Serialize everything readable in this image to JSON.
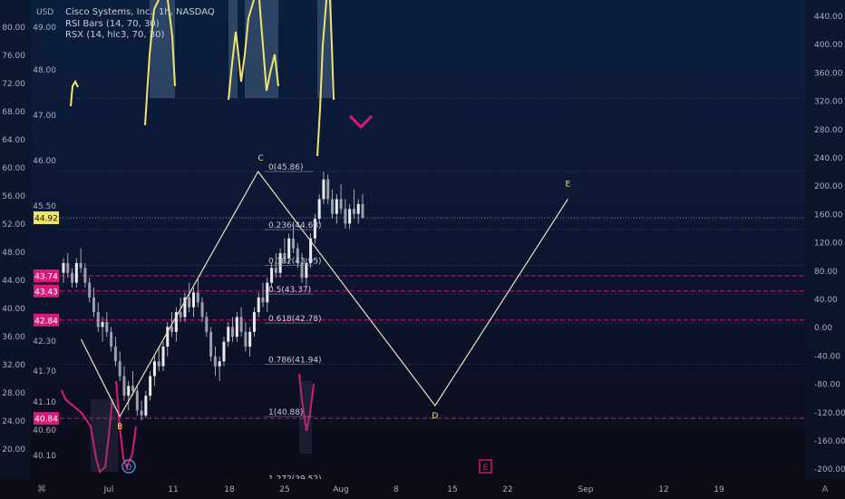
{
  "legend": {
    "symbol": "Cisco Systems, Inc., 1h, NASDAQ",
    "rsi_bars": "RSI Bars (14, 70, 30)",
    "rsx": "RSX (14, hlc3, 70, 30)"
  },
  "currency": "USD",
  "corner_right": "A",
  "corner_left": "⌘",
  "colors": {
    "background_top": "#0b1e3d",
    "background_bottom": "#0b0a14",
    "yellow": "#f2e56b",
    "magenta": "#d81b7a",
    "candles": "#c8cbd2",
    "grid_dotted": "#8a8f9c"
  },
  "chart_data": {
    "type": "candlestick",
    "title": "Cisco Systems, Inc., 1h, NASDAQ",
    "price_axis": {
      "label": "USD",
      "ticks": [
        "49.00",
        "48.00",
        "47.00",
        "46.00",
        "45.50",
        "42.30",
        "41.70",
        "41.10",
        "40.60",
        "40.10"
      ],
      "range": [
        40.0,
        49.2
      ]
    },
    "indicator_left_axis": {
      "ticks": [
        "80.00",
        "76.00",
        "72.00",
        "68.00",
        "64.00",
        "60.00",
        "56.00",
        "52.00",
        "48.00",
        "44.00",
        "40.00",
        "36.00",
        "32.00",
        "28.00",
        "24.00",
        "20.00"
      ]
    },
    "indicator_right_axis": {
      "ticks": [
        "440.00",
        "400.00",
        "360.00",
        "320.00",
        "280.00",
        "240.00",
        "200.00",
        "160.00",
        "120.00",
        "80.00",
        "40.00",
        "0.00",
        "-40.00",
        "-80.00",
        "-120.00",
        "-160.00",
        "-200.00"
      ]
    },
    "x_ticks": [
      "Jul",
      "11",
      "18",
      "25",
      "Aug",
      "8",
      "15",
      "22",
      "Sep",
      "12",
      "19"
    ],
    "price_labels": [
      {
        "value": "44.92",
        "color": "#f2e56b"
      },
      {
        "value": "43.74",
        "color": "#d81b7a"
      },
      {
        "value": "43.43",
        "color": "#d81b7a"
      },
      {
        "value": "42.84",
        "color": "#d81b7a"
      },
      {
        "value": "40.84",
        "color": "#d81b7a"
      }
    ],
    "fibonacci_levels": [
      {
        "ratio": "0",
        "price": 45.86,
        "label": "0(45.86)"
      },
      {
        "ratio": "0.236",
        "price": 44.68,
        "label": "0.236(44.68)"
      },
      {
        "ratio": "0.382",
        "price": 43.95,
        "label": "0.382(43.95)"
      },
      {
        "ratio": "0.5",
        "price": 43.37,
        "label": "0.5(43.37)"
      },
      {
        "ratio": "0.618",
        "price": 42.78,
        "label": "0.618(42.78)"
      },
      {
        "ratio": "0.786",
        "price": 41.94,
        "label": "0.786(41.94)"
      },
      {
        "ratio": "1",
        "price": 40.88,
        "label": "1(40.88)"
      },
      {
        "ratio": "1.272",
        "price": 39.52,
        "label": "1.272(39.52)"
      }
    ],
    "wave_labels": [
      "B",
      "C",
      "D",
      "E"
    ],
    "event_markers": [
      "D",
      "E"
    ],
    "candles": [
      [
        43.8,
        44.1,
        43.6,
        44.0
      ],
      [
        44.0,
        44.2,
        43.7,
        43.8
      ],
      [
        43.8,
        43.9,
        43.5,
        43.6
      ],
      [
        43.6,
        44.1,
        43.5,
        44.0
      ],
      [
        44.0,
        44.3,
        43.8,
        43.9
      ],
      [
        43.9,
        44.0,
        43.5,
        43.6
      ],
      [
        43.6,
        43.7,
        43.2,
        43.3
      ],
      [
        43.3,
        43.5,
        42.9,
        43.0
      ],
      [
        43.0,
        43.2,
        42.6,
        42.7
      ],
      [
        42.7,
        42.9,
        42.4,
        42.8
      ],
      [
        42.8,
        43.0,
        42.5,
        42.6
      ],
      [
        42.6,
        42.7,
        42.2,
        42.3
      ],
      [
        42.3,
        42.5,
        41.9,
        42.0
      ],
      [
        42.0,
        42.2,
        41.6,
        41.7
      ],
      [
        41.7,
        41.9,
        41.2,
        41.3
      ],
      [
        41.3,
        41.6,
        41.0,
        41.5
      ],
      [
        41.5,
        41.8,
        41.3,
        41.4
      ],
      [
        41.4,
        41.5,
        40.9,
        41.0
      ],
      [
        41.0,
        41.2,
        40.8,
        40.9
      ],
      [
        40.9,
        41.4,
        40.85,
        41.3
      ],
      [
        41.3,
        41.8,
        41.2,
        41.7
      ],
      [
        41.7,
        42.1,
        41.5,
        42.0
      ],
      [
        42.0,
        42.3,
        41.8,
        41.9
      ],
      [
        41.9,
        42.4,
        41.8,
        42.3
      ],
      [
        42.3,
        42.8,
        42.1,
        42.7
      ],
      [
        42.7,
        43.0,
        42.5,
        42.6
      ],
      [
        42.6,
        43.1,
        42.4,
        43.0
      ],
      [
        43.0,
        43.3,
        42.8,
        42.9
      ],
      [
        42.9,
        43.4,
        42.8,
        43.3
      ],
      [
        43.3,
        43.6,
        43.0,
        43.1
      ],
      [
        43.1,
        43.5,
        42.9,
        43.4
      ],
      [
        43.4,
        43.7,
        43.1,
        43.2
      ],
      [
        43.2,
        43.3,
        42.8,
        42.9
      ],
      [
        42.9,
        43.0,
        42.5,
        42.6
      ],
      [
        42.6,
        42.7,
        42.0,
        42.1
      ],
      [
        42.1,
        42.3,
        41.7,
        41.9
      ],
      [
        41.9,
        42.1,
        41.6,
        42.0
      ],
      [
        42.0,
        42.5,
        41.9,
        42.4
      ],
      [
        42.4,
        42.8,
        42.3,
        42.7
      ],
      [
        42.7,
        42.9,
        42.4,
        42.5
      ],
      [
        42.5,
        43.0,
        42.4,
        42.9
      ],
      [
        42.9,
        43.1,
        42.5,
        42.6
      ],
      [
        42.6,
        42.8,
        42.2,
        42.3
      ],
      [
        42.3,
        42.7,
        42.1,
        42.6
      ],
      [
        42.6,
        43.1,
        42.5,
        43.0
      ],
      [
        43.0,
        43.4,
        42.9,
        43.3
      ],
      [
        43.3,
        43.6,
        43.1,
        43.2
      ],
      [
        43.2,
        43.7,
        43.0,
        43.6
      ],
      [
        43.6,
        44.0,
        43.5,
        43.9
      ],
      [
        43.9,
        44.2,
        43.7,
        43.8
      ],
      [
        43.8,
        44.3,
        43.7,
        44.2
      ],
      [
        44.2,
        44.5,
        44.0,
        44.1
      ],
      [
        44.1,
        44.6,
        44.0,
        44.5
      ],
      [
        44.5,
        44.8,
        44.2,
        44.3
      ],
      [
        44.3,
        44.4,
        43.9,
        44.0
      ],
      [
        44.0,
        44.2,
        43.6,
        43.7
      ],
      [
        43.7,
        44.1,
        43.5,
        44.0
      ],
      [
        44.0,
        44.6,
        43.9,
        44.5
      ],
      [
        44.5,
        45.0,
        44.4,
        44.9
      ],
      [
        44.9,
        45.4,
        44.8,
        45.3
      ],
      [
        45.3,
        45.86,
        45.2,
        45.7
      ],
      [
        45.7,
        45.8,
        45.2,
        45.3
      ],
      [
        45.3,
        45.5,
        44.9,
        45.0
      ],
      [
        45.0,
        45.4,
        44.8,
        45.3
      ],
      [
        45.3,
        45.6,
        45.0,
        45.1
      ],
      [
        45.1,
        45.3,
        44.7,
        44.8
      ],
      [
        44.8,
        45.2,
        44.7,
        45.1
      ],
      [
        45.1,
        45.5,
        44.9,
        45.0
      ],
      [
        45.0,
        45.3,
        44.8,
        45.2
      ],
      [
        45.2,
        45.4,
        44.9,
        44.92
      ]
    ],
    "wave_path": [
      {
        "x": "Jun 26",
        "price": 42.45
      },
      {
        "x": "Jul 3",
        "price": 40.88,
        "label": "B"
      },
      {
        "x": "Jul 28",
        "price": 45.86,
        "label": "C"
      },
      {
        "x": "Aug 29",
        "price": 41.1,
        "label": "D"
      },
      {
        "x": "Sep 22",
        "price": 45.3,
        "label": "E"
      }
    ]
  }
}
